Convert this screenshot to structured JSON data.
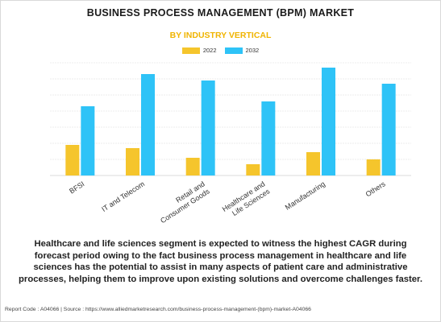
{
  "header": {
    "title": "BUSINESS PROCESS MANAGEMENT (BPM) MARKET",
    "subtitle": "BY INDUSTRY VERTICAL"
  },
  "chart_data": {
    "type": "bar",
    "title": "BUSINESS PROCESS MANAGEMENT (BPM) MARKET",
    "subtitle": "BY INDUSTRY VERTICAL",
    "categories": [
      [
        "BFSI"
      ],
      [
        "IT and Telecom"
      ],
      [
        "Retail and",
        "Consumer Goods"
      ],
      [
        "Healthcare and",
        "Life Sciences"
      ],
      [
        "Manufacturing"
      ],
      [
        "Others"
      ]
    ],
    "series": [
      {
        "name": "2022",
        "color": "#f5c52c",
        "values": [
          19,
          17,
          11,
          7,
          14.5,
          10
        ]
      },
      {
        "name": "2032",
        "color": "#2ec3f7",
        "values": [
          43,
          63,
          59,
          46,
          67,
          57
        ]
      }
    ],
    "ylim": [
      0,
      70
    ],
    "grid": true,
    "legend_position": "top-center"
  },
  "caption": "Healthcare and life sciences segment is expected to witness the highest CAGR during forecast period owing to the fact business process management in healthcare and life sciences has the potential to assist in many aspects of patient care and administrative processes, helping them to improve upon existing solutions and overcome challenges faster.",
  "footer": "Report Code : A04066  |  Source : https://www.alliedmarketresearch.com/business-process-management-(bpm)-market-A04066"
}
